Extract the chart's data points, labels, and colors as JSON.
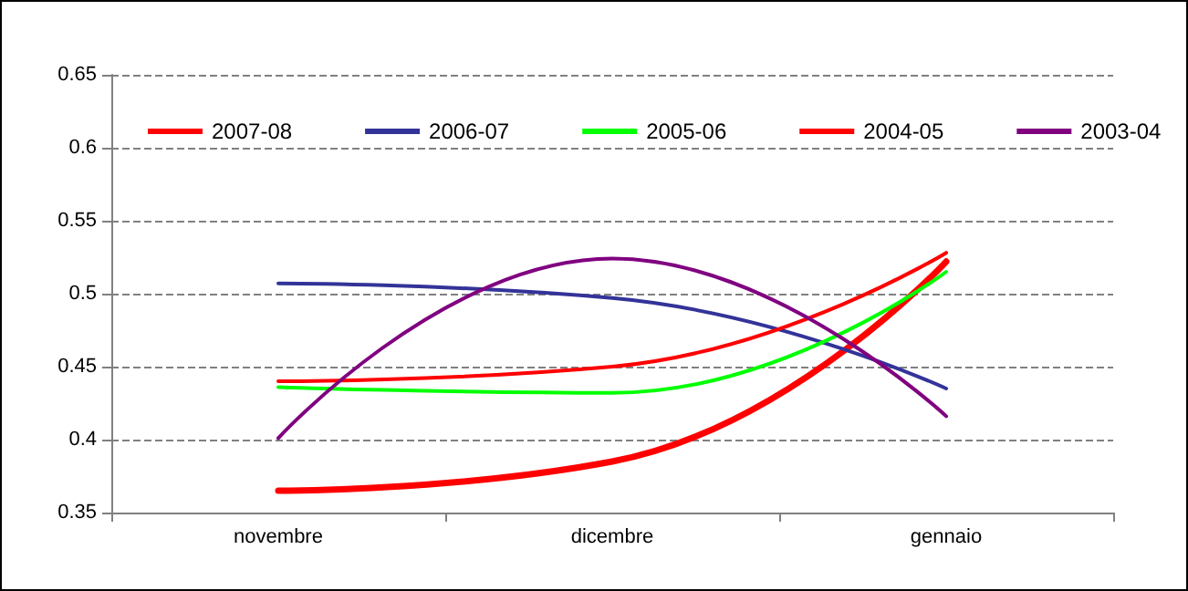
{
  "chart_data": {
    "type": "line",
    "categories": [
      "novembre",
      "dicembre",
      "gennaio"
    ],
    "series": [
      {
        "name": "2007-08",
        "color": "#ff0000",
        "values": [
          0.365,
          0.385,
          0.522
        ]
      },
      {
        "name": "2006-07",
        "color": "#333399",
        "values": [
          0.507,
          0.497,
          0.435
        ]
      },
      {
        "name": "2005-06",
        "color": "#00ff00",
        "values": [
          0.436,
          0.432,
          0.515
        ]
      },
      {
        "name": "2004-05",
        "color": "#ff0000",
        "values": [
          0.44,
          0.45,
          0.528
        ]
      },
      {
        "name": "2003-04",
        "color": "#800080",
        "values": [
          0.401,
          0.524,
          0.416
        ]
      }
    ],
    "ylim": [
      0.35,
      0.65
    ],
    "yticks": [
      0.35,
      0.4,
      0.45,
      0.5,
      0.55,
      0.6,
      0.65
    ],
    "grid": "y",
    "legend": "top",
    "marker": "none",
    "line_style": "solid"
  }
}
